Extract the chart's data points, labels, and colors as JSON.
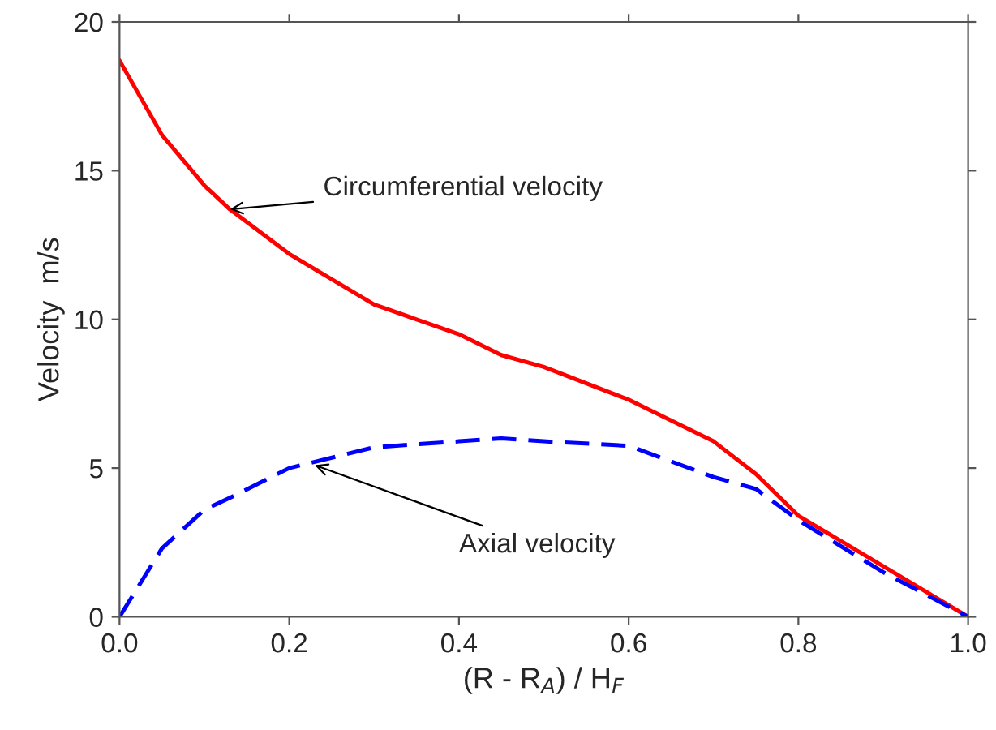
{
  "chart_data": {
    "type": "line",
    "xlabel": "(R - R$_{A}$) / H$_{F}$",
    "ylabel": "Velocity  m/s",
    "x": [
      0,
      0.05,
      0.1,
      0.13,
      0.2,
      0.3,
      0.4,
      0.45,
      0.5,
      0.6,
      0.7,
      0.75,
      0.8,
      0.9,
      1.0
    ],
    "series": [
      {
        "color": "#ff0000",
        "line_style": "solid",
        "values": [
          18.7,
          16.2,
          14.5,
          13.7,
          12.2,
          10.5,
          9.5,
          8.8,
          8.4,
          7.3,
          5.9,
          4.8,
          3.4,
          1.7,
          0
        ]
      },
      {
        "color": "#0000ff",
        "line_style": "dashed",
        "values": [
          0,
          2.3,
          3.6,
          4.0,
          5.0,
          5.7,
          5.9,
          6.0,
          5.9,
          5.75,
          4.7,
          4.3,
          3.25,
          1.5,
          0
        ]
      }
    ],
    "annotations": [
      {
        "text": "Circumferential velocity",
        "x": 0.13,
        "y": 13.7
      },
      {
        "text": "Axial velocity",
        "x": 0.23,
        "y": 5.1
      }
    ],
    "xlim": [
      0,
      1.0
    ],
    "ylim": [
      0,
      20
    ],
    "xticks": [
      {
        "value": 0,
        "label": "0.0"
      },
      0.2,
      0.4,
      0.6,
      0.8,
      {
        "value": 1,
        "label": "1.0"
      }
    ],
    "yticks": [
      0,
      5,
      10,
      15,
      20
    ],
    "grid": false,
    "legend": false,
    "marker": "none"
  }
}
